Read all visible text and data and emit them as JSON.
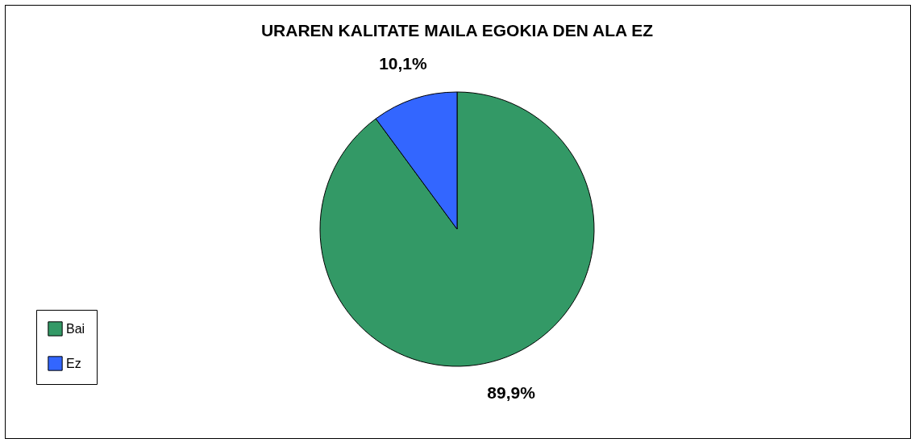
{
  "chart_data": {
    "type": "pie",
    "title": "URAREN KALITATE MAILA EGOKIA DEN ALA EZ",
    "categories": [
      "Bai",
      "Ez"
    ],
    "values": [
      89.9,
      10.1
    ],
    "colors": [
      "#339966",
      "#3366ff"
    ],
    "value_labels": [
      "89,9%",
      "10,1%"
    ],
    "legend": "bottom left"
  }
}
